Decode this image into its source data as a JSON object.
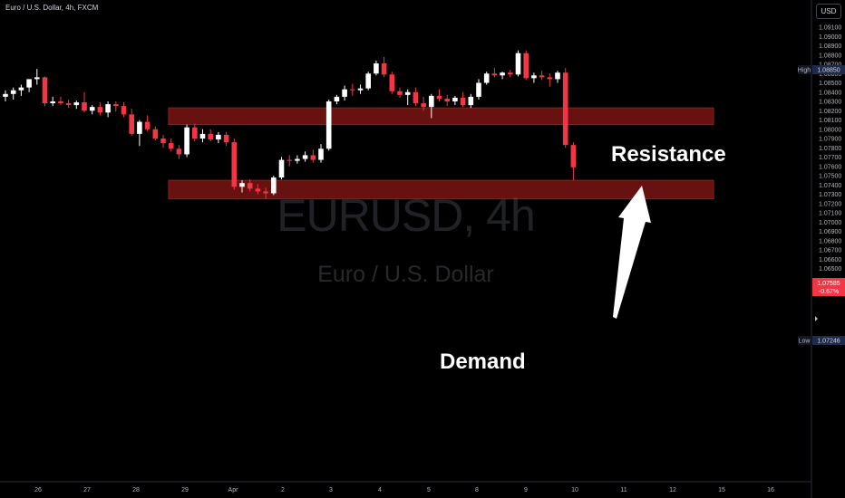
{
  "header": {
    "title": "Euro / U.S. Dollar, 4h, FXCM"
  },
  "currency": {
    "label": "USD"
  },
  "watermark": {
    "symbol": "EURUSD, 4h",
    "name": "Euro / U.S. Dollar"
  },
  "annotations": {
    "resistance": "Resistance",
    "demand": "Demand"
  },
  "colors": {
    "up": "#ffffff",
    "down": "#f23645",
    "zone_fill": "#6e1212",
    "zone_border": "#8b2020",
    "background": "#000000"
  },
  "badges": {
    "high": {
      "tag": "High",
      "value": "1.08850"
    },
    "last": {
      "value": "1.07585",
      "change": "-0.67%"
    },
    "low": {
      "tag": "Low",
      "value": "1.07246"
    }
  },
  "chart_data": {
    "type": "candlestick",
    "title": "Euro / U.S. Dollar, 4h, FXCM",
    "ylim": [
      1.0644,
      1.0925
    ],
    "y_ticks": [
      "1.09100",
      "1.09000",
      "1.08900",
      "1.08800",
      "1.08700",
      "1.08600",
      "1.08500",
      "1.08400",
      "1.08300",
      "1.08200",
      "1.08100",
      "1.08000",
      "1.07900",
      "1.07800",
      "1.07700",
      "1.07600",
      "1.07500",
      "1.07400",
      "1.07300",
      "1.07200",
      "1.07100",
      "1.07000",
      "1.06900",
      "1.06800",
      "1.06700",
      "1.06600",
      "1.06500"
    ],
    "x_ticks": [
      "26",
      "27",
      "28",
      "29",
      "Apr",
      "2",
      "3",
      "4",
      "5",
      "8",
      "9",
      "10",
      "11",
      "12",
      "15",
      "16"
    ],
    "candles": [
      {
        "o": 1.0835,
        "h": 1.0842,
        "l": 1.083,
        "c": 1.0838
      },
      {
        "o": 1.0838,
        "h": 1.0845,
        "l": 1.0832,
        "c": 1.0842
      },
      {
        "o": 1.0842,
        "h": 1.0848,
        "l": 1.0836,
        "c": 1.0845
      },
      {
        "o": 1.0845,
        "h": 1.0853,
        "l": 1.084,
        "c": 1.0854
      },
      {
        "o": 1.0854,
        "h": 1.0865,
        "l": 1.0848,
        "c": 1.0856
      },
      {
        "o": 1.0856,
        "h": 1.0857,
        "l": 1.0825,
        "c": 1.0828
      },
      {
        "o": 1.0828,
        "h": 1.0835,
        "l": 1.0825,
        "c": 1.083
      },
      {
        "o": 1.083,
        "h": 1.0835,
        "l": 1.0826,
        "c": 1.0828
      },
      {
        "o": 1.0828,
        "h": 1.0832,
        "l": 1.0823,
        "c": 1.0826
      },
      {
        "o": 1.0826,
        "h": 1.0831,
        "l": 1.0822,
        "c": 1.0829
      },
      {
        "o": 1.0829,
        "h": 1.084,
        "l": 1.0818,
        "c": 1.082
      },
      {
        "o": 1.082,
        "h": 1.0826,
        "l": 1.0816,
        "c": 1.0824
      },
      {
        "o": 1.0824,
        "h": 1.0829,
        "l": 1.0815,
        "c": 1.0818
      },
      {
        "o": 1.0818,
        "h": 1.083,
        "l": 1.0813,
        "c": 1.0827
      },
      {
        "o": 1.0827,
        "h": 1.083,
        "l": 1.0819,
        "c": 1.0825
      },
      {
        "o": 1.0825,
        "h": 1.0829,
        "l": 1.0813,
        "c": 1.0816
      },
      {
        "o": 1.0816,
        "h": 1.0822,
        "l": 1.0793,
        "c": 1.0795
      },
      {
        "o": 1.0795,
        "h": 1.081,
        "l": 1.0782,
        "c": 1.0808
      },
      {
        "o": 1.0808,
        "h": 1.0815,
        "l": 1.0798,
        "c": 1.08
      },
      {
        "o": 1.08,
        "h": 1.0803,
        "l": 1.0788,
        "c": 1.079
      },
      {
        "o": 1.079,
        "h": 1.0794,
        "l": 1.078,
        "c": 1.0785
      },
      {
        "o": 1.0785,
        "h": 1.079,
        "l": 1.0776,
        "c": 1.0779
      },
      {
        "o": 1.0779,
        "h": 1.0783,
        "l": 1.0768,
        "c": 1.0773
      },
      {
        "o": 1.0773,
        "h": 1.0805,
        "l": 1.077,
        "c": 1.0802
      },
      {
        "o": 1.0802,
        "h": 1.0806,
        "l": 1.0787,
        "c": 1.079
      },
      {
        "o": 1.079,
        "h": 1.08,
        "l": 1.0786,
        "c": 1.0795
      },
      {
        "o": 1.0795,
        "h": 1.08,
        "l": 1.0787,
        "c": 1.0789
      },
      {
        "o": 1.0789,
        "h": 1.0797,
        "l": 1.0785,
        "c": 1.0794
      },
      {
        "o": 1.0794,
        "h": 1.0797,
        "l": 1.0782,
        "c": 1.0786
      },
      {
        "o": 1.0786,
        "h": 1.079,
        "l": 1.0735,
        "c": 1.0738
      },
      {
        "o": 1.0738,
        "h": 1.0745,
        "l": 1.0732,
        "c": 1.0742
      },
      {
        "o": 1.0742,
        "h": 1.0746,
        "l": 1.0733,
        "c": 1.0736
      },
      {
        "o": 1.0736,
        "h": 1.0741,
        "l": 1.073,
        "c": 1.0733
      },
      {
        "o": 1.0733,
        "h": 1.0737,
        "l": 1.0725,
        "c": 1.0731
      },
      {
        "o": 1.0731,
        "h": 1.075,
        "l": 1.0729,
        "c": 1.0748
      },
      {
        "o": 1.0748,
        "h": 1.077,
        "l": 1.0746,
        "c": 1.0767
      },
      {
        "o": 1.0767,
        "h": 1.0772,
        "l": 1.076,
        "c": 1.0766
      },
      {
        "o": 1.0766,
        "h": 1.0772,
        "l": 1.0763,
        "c": 1.0768
      },
      {
        "o": 1.0768,
        "h": 1.0776,
        "l": 1.0765,
        "c": 1.0772
      },
      {
        "o": 1.0772,
        "h": 1.0778,
        "l": 1.0764,
        "c": 1.0767
      },
      {
        "o": 1.0767,
        "h": 1.0784,
        "l": 1.0764,
        "c": 1.0779
      },
      {
        "o": 1.0779,
        "h": 1.0832,
        "l": 1.0777,
        "c": 1.083
      },
      {
        "o": 1.083,
        "h": 1.0837,
        "l": 1.0827,
        "c": 1.0835
      },
      {
        "o": 1.0835,
        "h": 1.0847,
        "l": 1.0831,
        "c": 1.0843
      },
      {
        "o": 1.0843,
        "h": 1.0849,
        "l": 1.0836,
        "c": 1.0842
      },
      {
        "o": 1.0842,
        "h": 1.0848,
        "l": 1.0838,
        "c": 1.0844
      },
      {
        "o": 1.0844,
        "h": 1.0862,
        "l": 1.0842,
        "c": 1.086
      },
      {
        "o": 1.086,
        "h": 1.0874,
        "l": 1.0858,
        "c": 1.0871
      },
      {
        "o": 1.0871,
        "h": 1.0878,
        "l": 1.0856,
        "c": 1.0859
      },
      {
        "o": 1.0859,
        "h": 1.0862,
        "l": 1.0838,
        "c": 1.0841
      },
      {
        "o": 1.0841,
        "h": 1.0845,
        "l": 1.0834,
        "c": 1.0837
      },
      {
        "o": 1.0837,
        "h": 1.0843,
        "l": 1.0826,
        "c": 1.084
      },
      {
        "o": 1.084,
        "h": 1.0845,
        "l": 1.0825,
        "c": 1.0828
      },
      {
        "o": 1.0828,
        "h": 1.0835,
        "l": 1.082,
        "c": 1.0824
      },
      {
        "o": 1.0824,
        "h": 1.0838,
        "l": 1.0812,
        "c": 1.0836
      },
      {
        "o": 1.0836,
        "h": 1.0843,
        "l": 1.083,
        "c": 1.0833
      },
      {
        "o": 1.0833,
        "h": 1.0837,
        "l": 1.0825,
        "c": 1.083
      },
      {
        "o": 1.083,
        "h": 1.0836,
        "l": 1.0826,
        "c": 1.0834
      },
      {
        "o": 1.0834,
        "h": 1.084,
        "l": 1.0824,
        "c": 1.0826
      },
      {
        "o": 1.0826,
        "h": 1.0838,
        "l": 1.0823,
        "c": 1.0835
      },
      {
        "o": 1.0835,
        "h": 1.0854,
        "l": 1.0832,
        "c": 1.085
      },
      {
        "o": 1.085,
        "h": 1.0862,
        "l": 1.0848,
        "c": 1.086
      },
      {
        "o": 1.086,
        "h": 1.0866,
        "l": 1.0856,
        "c": 1.0858
      },
      {
        "o": 1.0858,
        "h": 1.0862,
        "l": 1.0854,
        "c": 1.0861
      },
      {
        "o": 1.0861,
        "h": 1.0864,
        "l": 1.0856,
        "c": 1.0859
      },
      {
        "o": 1.0859,
        "h": 1.0885,
        "l": 1.0857,
        "c": 1.0882
      },
      {
        "o": 1.0882,
        "h": 1.0885,
        "l": 1.0853,
        "c": 1.0855
      },
      {
        "o": 1.0855,
        "h": 1.0861,
        "l": 1.085,
        "c": 1.0858
      },
      {
        "o": 1.0858,
        "h": 1.0863,
        "l": 1.0853,
        "c": 1.0856
      },
      {
        "o": 1.0856,
        "h": 1.086,
        "l": 1.0846,
        "c": 1.0854
      },
      {
        "o": 1.0854,
        "h": 1.0863,
        "l": 1.085,
        "c": 1.0861
      },
      {
        "o": 1.0861,
        "h": 1.0866,
        "l": 1.078,
        "c": 1.0783
      },
      {
        "o": 1.0783,
        "h": 1.0786,
        "l": 1.0745,
        "c": 1.0759
      }
    ],
    "zones": [
      {
        "name": "Resistance",
        "from": 1.0805,
        "to": 1.0823
      },
      {
        "name": "Demand",
        "from": 1.0725,
        "to": 1.0745
      }
    ]
  }
}
